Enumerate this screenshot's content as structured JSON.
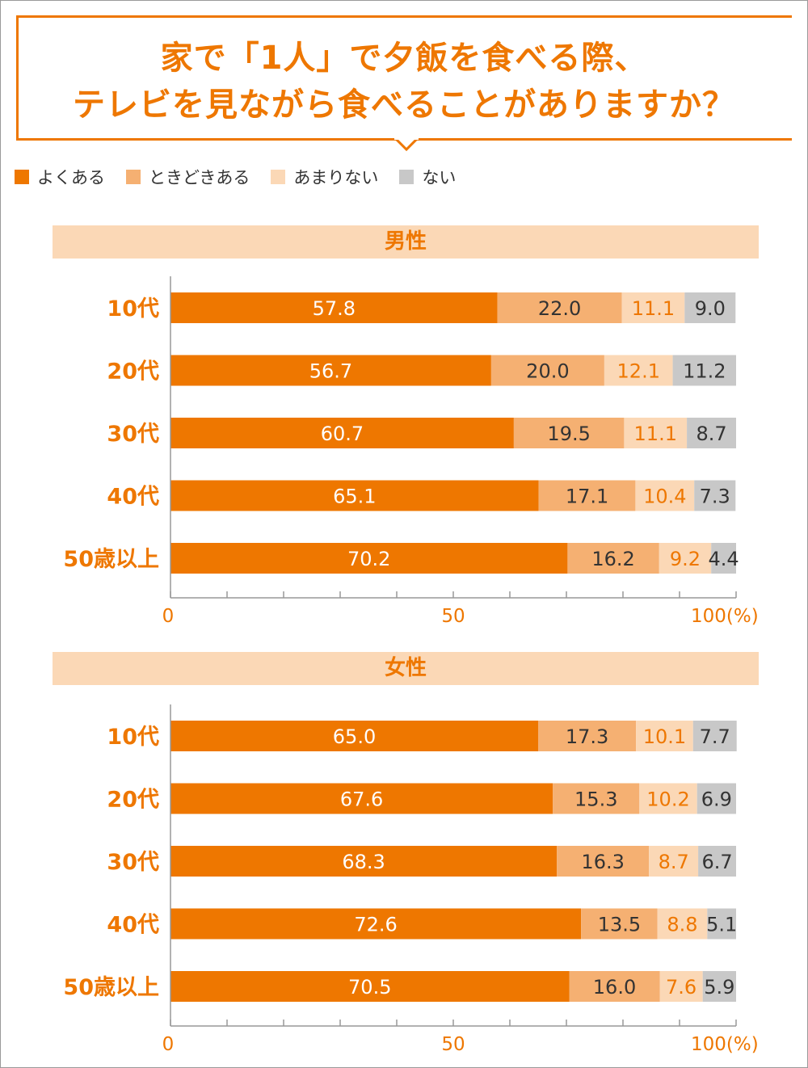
{
  "title": {
    "line1": "家で「1人」で夕飯を食べる際、",
    "line2": "テレビを見ながら食べることがありますか？"
  },
  "legend": [
    {
      "label": "よくある",
      "color": "#ee7700"
    },
    {
      "label": "ときどきある",
      "color": "#f5b072"
    },
    {
      "label": "あまりない",
      "color": "#fbd8b6"
    },
    {
      "label": "ない",
      "color": "#c8c8c8"
    }
  ],
  "colors": {
    "accent": "#ee7700",
    "label_dark": "#333333",
    "label_light": "#ffffff",
    "axis": "#999999"
  },
  "chart_data": [
    {
      "type": "bar",
      "orientation": "horizontal",
      "stacked": true,
      "title": "男性",
      "categories": [
        "10代",
        "20代",
        "30代",
        "40代",
        "50歳以上"
      ],
      "series": [
        {
          "name": "よくある",
          "values": [
            57.8,
            56.7,
            60.7,
            65.1,
            70.2
          ]
        },
        {
          "name": "ときどきある",
          "values": [
            22.0,
            20.0,
            19.5,
            17.1,
            16.2
          ]
        },
        {
          "name": "あまりない",
          "values": [
            11.1,
            12.1,
            11.1,
            10.4,
            9.2
          ]
        },
        {
          "name": "ない",
          "values": [
            9.0,
            11.2,
            8.7,
            7.3,
            4.4
          ]
        }
      ],
      "xlim": [
        0,
        100
      ],
      "x_ticks": [
        "0",
        "50",
        "100(%)"
      ],
      "legend": "top-left"
    },
    {
      "type": "bar",
      "orientation": "horizontal",
      "stacked": true,
      "title": "女性",
      "categories": [
        "10代",
        "20代",
        "30代",
        "40代",
        "50歳以上"
      ],
      "series": [
        {
          "name": "よくある",
          "values": [
            65.0,
            67.6,
            68.3,
            72.6,
            70.5
          ]
        },
        {
          "name": "ときどきある",
          "values": [
            17.3,
            15.3,
            16.3,
            13.5,
            16.0
          ]
        },
        {
          "name": "あまりない",
          "values": [
            10.1,
            10.2,
            8.7,
            8.8,
            7.6
          ]
        },
        {
          "name": "ない",
          "values": [
            7.7,
            6.9,
            6.7,
            5.1,
            5.9
          ]
        }
      ],
      "xlim": [
        0,
        100
      ],
      "x_ticks": [
        "0",
        "50",
        "100(%)"
      ],
      "legend": "top-left"
    }
  ]
}
